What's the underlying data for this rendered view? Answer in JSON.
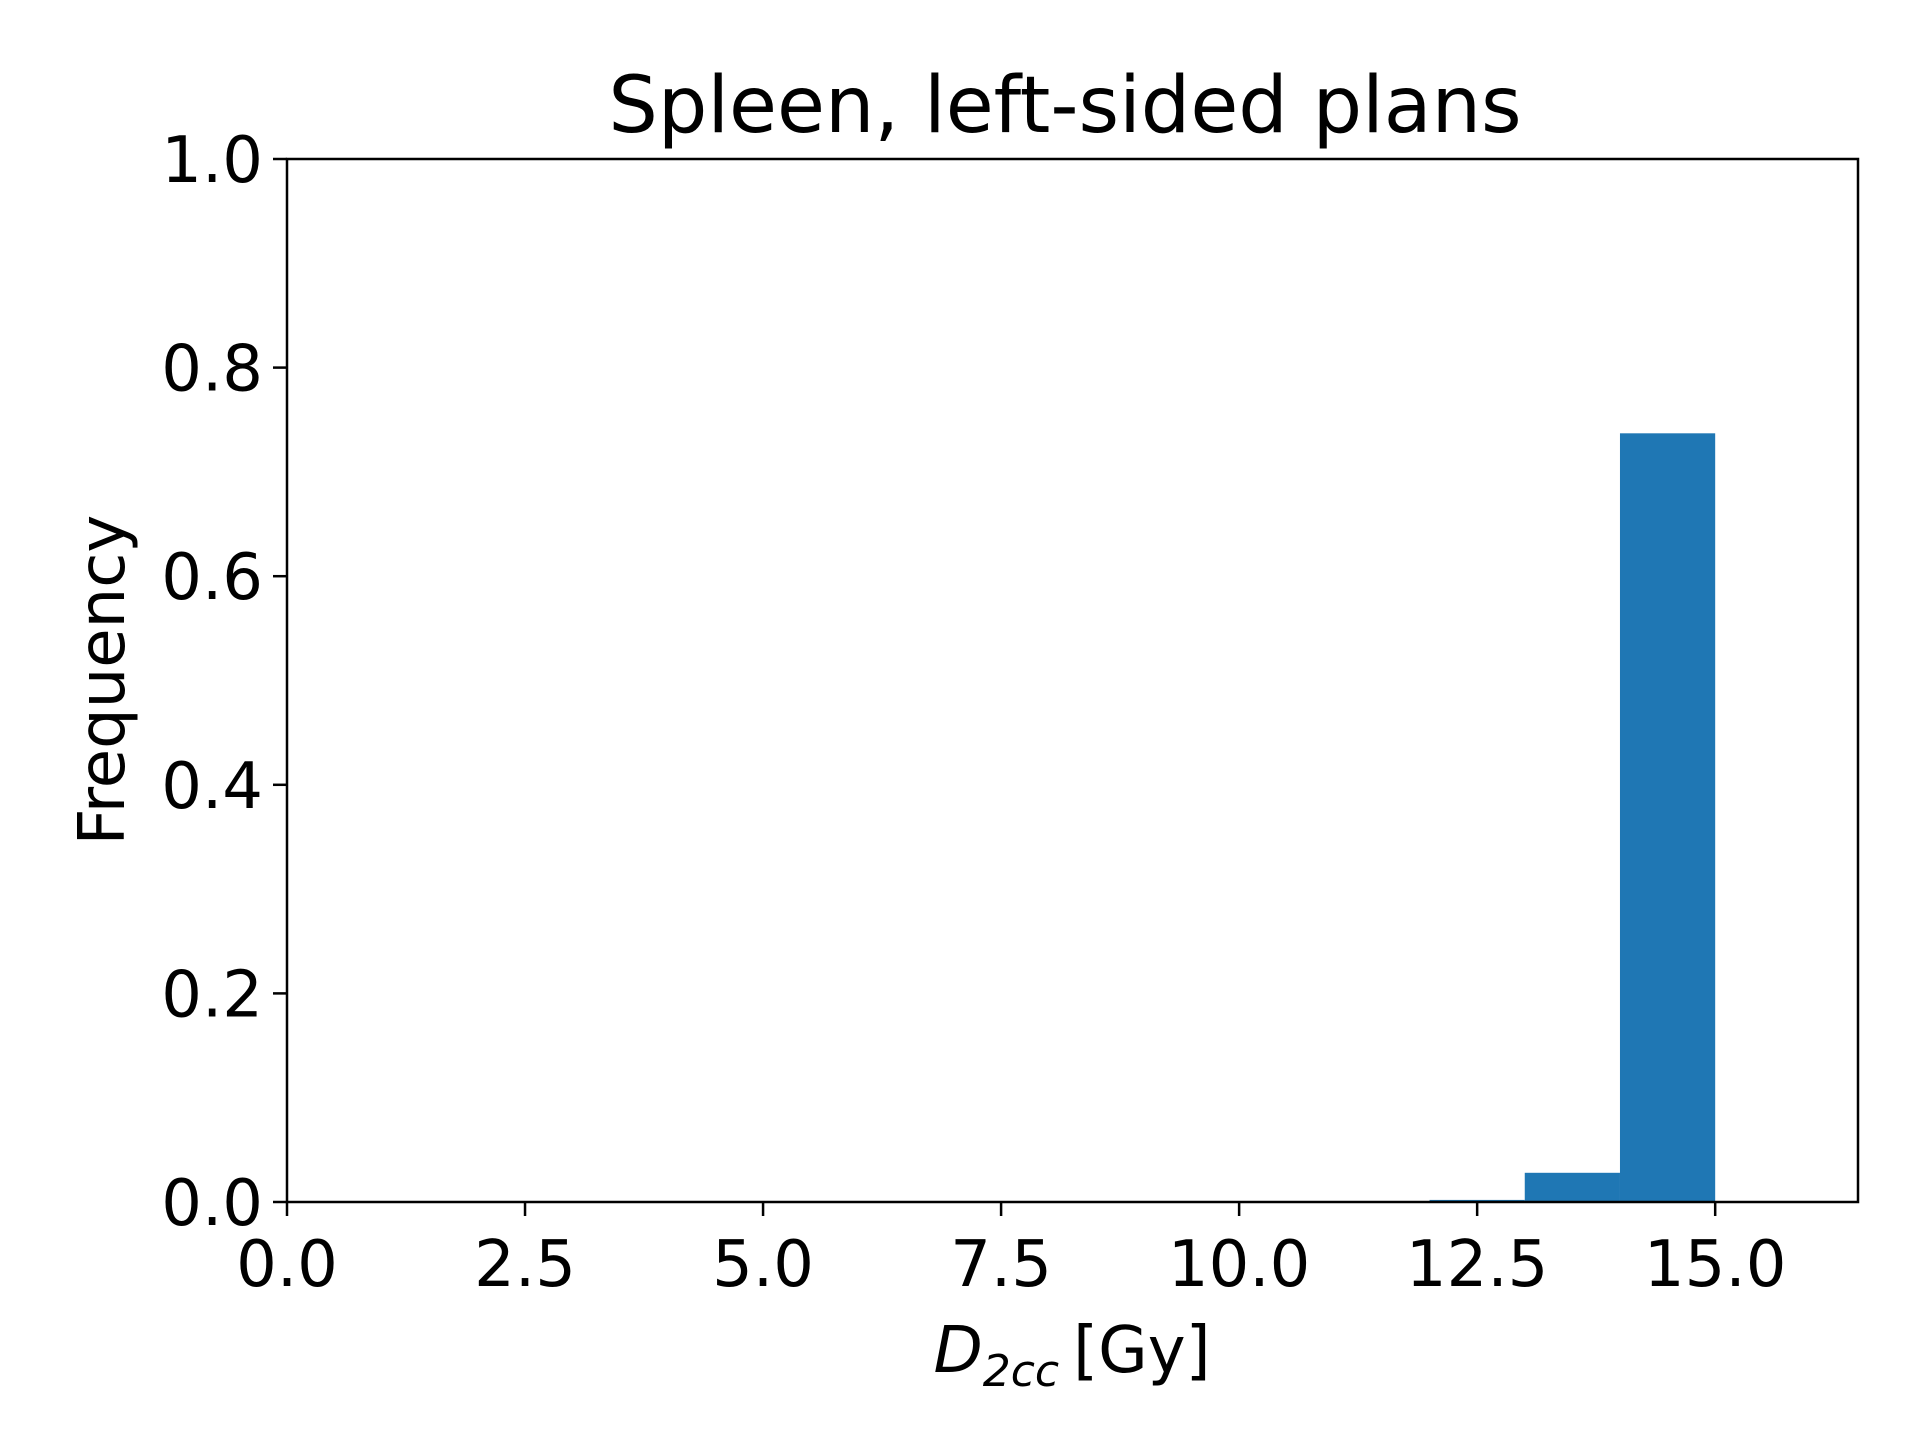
{
  "chart_data": {
    "type": "bar",
    "title": "Spleen, left-sided plans",
    "xlabel": {
      "symbol": "D",
      "subscript": "2cc",
      "unit": "[Gy]"
    },
    "ylabel": "Frequency",
    "xlim": [
      0,
      16.5
    ],
    "ylim": [
      0,
      1
    ],
    "xticks": [
      0,
      2.5,
      5,
      7.5,
      10,
      12.5,
      15
    ],
    "xtick_labels": [
      "0.0",
      "2.5",
      "5.0",
      "7.5",
      "10.0",
      "12.5",
      "15.0"
    ],
    "yticks": [
      0,
      0.2,
      0.4,
      0.6,
      0.8,
      1.0
    ],
    "ytick_labels": [
      "0.0",
      "0.2",
      "0.4",
      "0.6",
      "0.8",
      "1.0"
    ],
    "bins": [
      {
        "x0": 12,
        "x1": 13,
        "value": 0.002
      },
      {
        "x0": 13,
        "x1": 14,
        "value": 0.028
      },
      {
        "x0": 14,
        "x1": 15,
        "value": 0.737
      }
    ],
    "grid": false,
    "bar_color": "#1f77b4"
  }
}
